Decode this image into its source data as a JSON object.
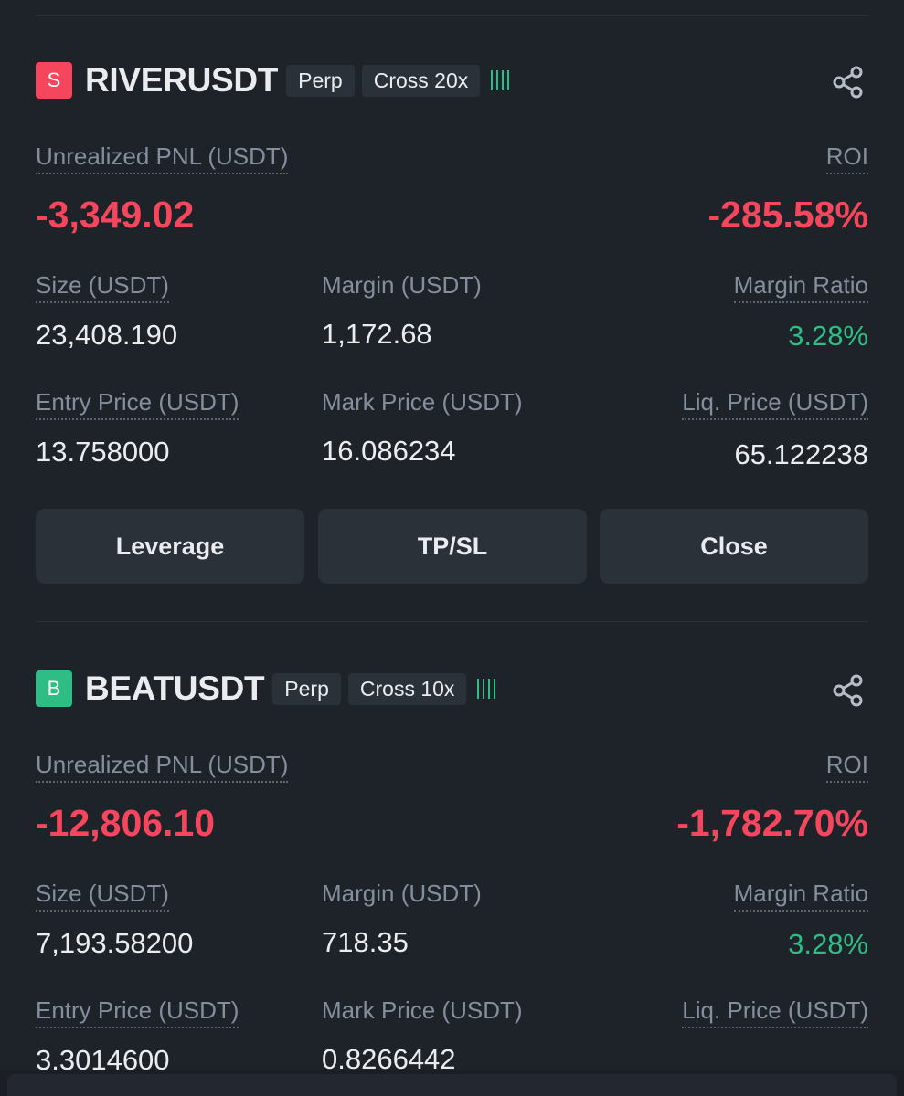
{
  "positions": [
    {
      "side_letter": "S",
      "symbol": "RIVERUSDT",
      "type_tag": "Perp",
      "margin_tag": "Cross 20x",
      "pnl_label": "Unrealized PNL (USDT)",
      "pnl_value": "-3,349.02",
      "roi_label": "ROI",
      "roi_value": "-285.58%",
      "size_label": "Size (USDT)",
      "size_value": "23,408.190",
      "margin_label": "Margin (USDT)",
      "margin_value": "1,172.68",
      "margin_ratio_label": "Margin Ratio",
      "margin_ratio_value": "3.28%",
      "entry_label": "Entry Price (USDT)",
      "entry_value": "13.758000",
      "mark_label": "Mark Price (USDT)",
      "mark_value": "16.086234",
      "liq_label": "Liq. Price (USDT)",
      "liq_value": "65.122238",
      "buttons": {
        "leverage": "Leverage",
        "tpsl": "TP/SL",
        "close": "Close"
      }
    },
    {
      "side_letter": "B",
      "symbol": "BEATUSDT",
      "type_tag": "Perp",
      "margin_tag": "Cross 10x",
      "pnl_label": "Unrealized PNL (USDT)",
      "pnl_value": "-12,806.10",
      "roi_label": "ROI",
      "roi_value": "-1,782.70%",
      "size_label": "Size (USDT)",
      "size_value": "7,193.58200",
      "margin_label": "Margin (USDT)",
      "margin_value": "718.35",
      "margin_ratio_label": "Margin Ratio",
      "margin_ratio_value": "3.28%",
      "entry_label": "Entry Price (USDT)",
      "entry_value": "3.3014600",
      "mark_label": "Mark Price (USDT)",
      "mark_value": "0.8266442"
    }
  ],
  "colors": {
    "loss": "#f6465d",
    "profit": "#2ebd85",
    "background": "#1e2329"
  },
  "icons": {
    "share": "share-icon",
    "adl": "adl-indicator-icon"
  }
}
